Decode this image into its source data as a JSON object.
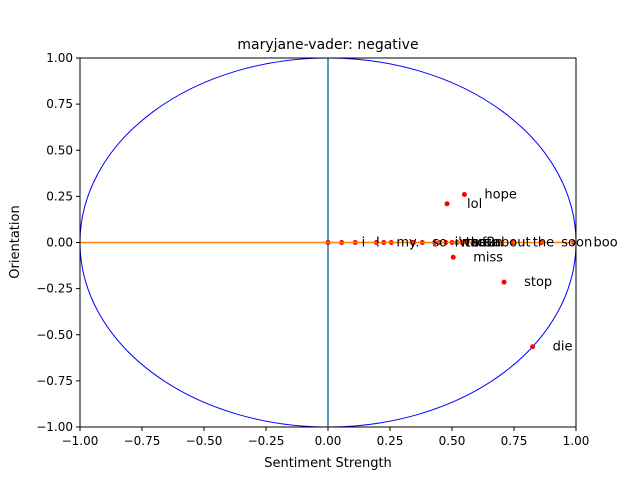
{
  "chart_data": {
    "type": "scatter",
    "title": "maryjane-vader: negative",
    "xlabel": "Sentiment Strength",
    "ylabel": "Orientation",
    "xlim": [
      -1.0,
      1.0
    ],
    "ylim": [
      -1.0,
      1.0
    ],
    "xticks": [
      "−1.00",
      "−0.75",
      "−0.50",
      "−0.25",
      "0.00",
      "0.25",
      "0.50",
      "0.75",
      "1.00"
    ],
    "yticks": [
      "−1.00",
      "−0.75",
      "−0.50",
      "−0.25",
      "0.00",
      "0.25",
      "0.50",
      "0.75",
      "1.00"
    ],
    "tick_values": [
      -1.0,
      -0.75,
      -0.5,
      -0.25,
      0.0,
      0.25,
      0.5,
      0.75,
      1.0
    ],
    "grid": false,
    "legend": false,
    "colors": {
      "points": "#ff0000",
      "unit_circle": "#0000ff",
      "vertical_axis_line": "#1f77b4",
      "horizontal_axis_line": "#ff7f0e"
    },
    "points": [
      {
        "x": 0.0,
        "y": 0.0,
        "label": ""
      },
      {
        "x": 0.055,
        "y": 0.0,
        "label": "i"
      },
      {
        "x": 0.11,
        "y": 0.0,
        "label": "!"
      },
      {
        "x": 0.195,
        "y": 0.0,
        "label": "my"
      },
      {
        "x": 0.225,
        "y": 0.0,
        "label": ""
      },
      {
        "x": 0.255,
        "y": 0.0,
        "label": ".."
      },
      {
        "x": 0.34,
        "y": 0.0,
        "label": "so"
      },
      {
        "x": 0.345,
        "y": 0.0,
        "label": ""
      },
      {
        "x": 0.38,
        "y": 0.0,
        "label": ""
      },
      {
        "x": 0.43,
        "y": 0.0,
        "label": "i'm"
      },
      {
        "x": 0.45,
        "y": 0.0,
        "label": "want"
      },
      {
        "x": 0.475,
        "y": 0.0,
        "label": "the"
      },
      {
        "x": 0.5,
        "y": 0.0,
        "label": "so"
      },
      {
        "x": 0.52,
        "y": 0.0,
        "label": "can"
      },
      {
        "x": 0.54,
        "y": 0.0,
        "label": "fun"
      },
      {
        "x": 0.56,
        "y": 0.0,
        "label": "2"
      },
      {
        "x": 0.585,
        "y": 0.0,
        "label": "about"
      },
      {
        "x": 0.745,
        "y": 0.0,
        "label": "the"
      },
      {
        "x": 0.86,
        "y": 0.0,
        "label": "soon"
      },
      {
        "x": 0.99,
        "y": 0.0,
        "label": "boo"
      },
      {
        "x": 0.48,
        "y": 0.21,
        "label": "lol"
      },
      {
        "x": 0.55,
        "y": 0.26,
        "label": "hope"
      },
      {
        "x": 0.505,
        "y": -0.08,
        "label": "miss"
      },
      {
        "x": 0.71,
        "y": -0.215,
        "label": "stop"
      },
      {
        "x": 0.825,
        "y": -0.565,
        "label": "die"
      }
    ]
  }
}
